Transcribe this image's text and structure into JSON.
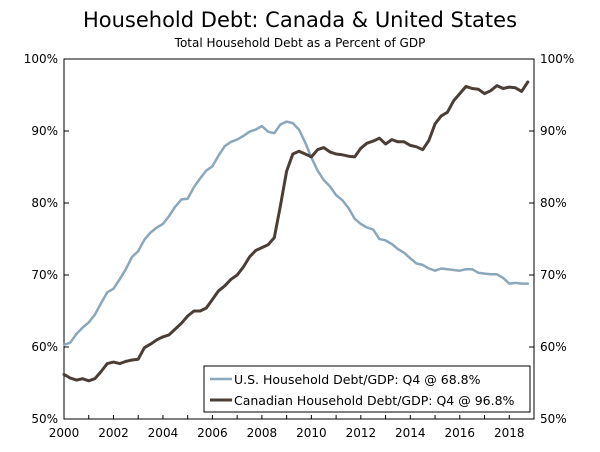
{
  "chart_data": {
    "type": "line",
    "title": "Household Debt: Canada & United States",
    "subtitle": "Total Household Debt as a Percent of GDP",
    "xlabel": "",
    "ylabel": "",
    "xlim": [
      2000,
      2019
    ],
    "ylim": [
      50,
      100
    ],
    "x_ticks": [
      2000,
      2002,
      2004,
      2006,
      2008,
      2010,
      2012,
      2014,
      2016,
      2018
    ],
    "x_tick_labels": [
      "2000",
      "2002",
      "2004",
      "2006",
      "2008",
      "2010",
      "2012",
      "2014",
      "2016",
      "2018"
    ],
    "y_ticks": [
      50,
      60,
      70,
      80,
      90,
      100
    ],
    "y_tick_labels": [
      "50%",
      "60%",
      "70%",
      "80%",
      "90%",
      "100%"
    ],
    "grid": false,
    "legend_position": "bottom-right",
    "series": [
      {
        "name": "U.S. Household Debt/GDP: Q4 @ 68.8%",
        "color": "#8ba7bb",
        "x": [
          2000.0,
          2000.25,
          2000.5,
          2000.75,
          2001.0,
          2001.25,
          2001.5,
          2001.75,
          2002.0,
          2002.25,
          2002.5,
          2002.75,
          2003.0,
          2003.25,
          2003.5,
          2003.75,
          2004.0,
          2004.25,
          2004.5,
          2004.75,
          2005.0,
          2005.25,
          2005.5,
          2005.75,
          2006.0,
          2006.25,
          2006.5,
          2006.75,
          2007.0,
          2007.25,
          2007.5,
          2007.75,
          2008.0,
          2008.25,
          2008.5,
          2008.75,
          2009.0,
          2009.25,
          2009.5,
          2009.75,
          2010.0,
          2010.25,
          2010.5,
          2010.75,
          2011.0,
          2011.25,
          2011.5,
          2011.75,
          2012.0,
          2012.25,
          2012.5,
          2012.75,
          2013.0,
          2013.25,
          2013.5,
          2013.75,
          2014.0,
          2014.25,
          2014.5,
          2014.75,
          2015.0,
          2015.25,
          2015.5,
          2015.75,
          2016.0,
          2016.25,
          2016.5,
          2016.75,
          2017.0,
          2017.25,
          2017.5,
          2017.75,
          2018.0,
          2018.25,
          2018.5,
          2018.75
        ],
        "values": [
          60.3,
          60.6,
          61.8,
          62.7,
          63.4,
          64.5,
          66.1,
          67.6,
          68.1,
          69.4,
          70.8,
          72.5,
          73.3,
          74.9,
          75.9,
          76.6,
          77.1,
          78.2,
          79.5,
          80.5,
          80.6,
          82.2,
          83.4,
          84.5,
          85.1,
          86.6,
          87.9,
          88.5,
          88.8,
          89.3,
          89.9,
          90.2,
          90.7,
          89.9,
          89.7,
          90.9,
          91.3,
          91.1,
          90.2,
          88.4,
          86.3,
          84.5,
          83.2,
          82.3,
          81.1,
          80.4,
          79.3,
          77.8,
          77.1,
          76.6,
          76.3,
          75.0,
          74.8,
          74.3,
          73.6,
          73.1,
          72.3,
          71.6,
          71.4,
          70.9,
          70.6,
          70.9,
          70.8,
          70.7,
          70.6,
          70.8,
          70.8,
          70.3,
          70.2,
          70.1,
          70.1,
          69.6,
          68.8,
          68.9,
          68.8,
          68.8
        ]
      },
      {
        "name": "Canadian Household Debt/GDP: Q4 @ 96.8%",
        "color": "#4b3e36",
        "x": [
          2000.0,
          2000.25,
          2000.5,
          2000.75,
          2001.0,
          2001.25,
          2001.5,
          2001.75,
          2002.0,
          2002.25,
          2002.5,
          2002.75,
          2003.0,
          2003.25,
          2003.5,
          2003.75,
          2004.0,
          2004.25,
          2004.5,
          2004.75,
          2005.0,
          2005.25,
          2005.5,
          2005.75,
          2006.0,
          2006.25,
          2006.5,
          2006.75,
          2007.0,
          2007.25,
          2007.5,
          2007.75,
          2008.0,
          2008.25,
          2008.5,
          2008.75,
          2009.0,
          2009.25,
          2009.5,
          2009.75,
          2010.0,
          2010.25,
          2010.5,
          2010.75,
          2011.0,
          2011.25,
          2011.5,
          2011.75,
          2012.0,
          2012.25,
          2012.5,
          2012.75,
          2013.0,
          2013.25,
          2013.5,
          2013.75,
          2014.0,
          2014.25,
          2014.5,
          2014.75,
          2015.0,
          2015.25,
          2015.5,
          2015.75,
          2016.0,
          2016.25,
          2016.5,
          2016.75,
          2017.0,
          2017.25,
          2017.5,
          2017.75,
          2018.0,
          2018.25,
          2018.5,
          2018.75
        ],
        "values": [
          56.2,
          55.7,
          55.4,
          55.6,
          55.3,
          55.6,
          56.6,
          57.7,
          57.9,
          57.7,
          58.0,
          58.2,
          58.3,
          59.9,
          60.4,
          61.0,
          61.4,
          61.7,
          62.5,
          63.3,
          64.3,
          65.0,
          65.0,
          65.4,
          66.6,
          67.8,
          68.5,
          69.4,
          70.0,
          71.1,
          72.5,
          73.4,
          73.8,
          74.2,
          75.2,
          79.6,
          84.4,
          86.8,
          87.2,
          86.8,
          86.4,
          87.4,
          87.7,
          87.1,
          86.8,
          86.7,
          86.5,
          86.4,
          87.6,
          88.3,
          88.6,
          89.0,
          88.2,
          88.8,
          88.5,
          88.5,
          88.0,
          87.8,
          87.4,
          88.7,
          91.0,
          92.1,
          92.6,
          94.2,
          95.2,
          96.2,
          95.9,
          95.8,
          95.2,
          95.6,
          96.3,
          95.9,
          96.1,
          96.0,
          95.5,
          96.8
        ]
      }
    ]
  }
}
